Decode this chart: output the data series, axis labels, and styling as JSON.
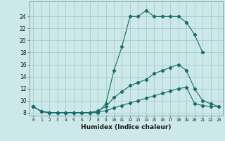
{
  "xlabel": "Humidex (Indice chaleur)",
  "bg_color": "#cce8e8",
  "grid_color": "#aacccc",
  "line_color": "#1a6b6b",
  "xlim": [
    -0.5,
    23.5
  ],
  "ylim": [
    7.5,
    26.5
  ],
  "yticks": [
    8,
    10,
    12,
    14,
    16,
    18,
    20,
    22,
    24
  ],
  "xticks": [
    0,
    1,
    2,
    3,
    4,
    5,
    6,
    7,
    8,
    9,
    10,
    11,
    12,
    13,
    14,
    15,
    16,
    17,
    18,
    19,
    20,
    21,
    22,
    23
  ],
  "series": [
    {
      "x": [
        0,
        1,
        2,
        3,
        4,
        5,
        6,
        7,
        8,
        9,
        10,
        11,
        12,
        13,
        14,
        15,
        16,
        17,
        18,
        19,
        20,
        21
      ],
      "y": [
        9.0,
        8.2,
        8.0,
        8.0,
        8.0,
        8.0,
        8.0,
        8.0,
        8.0,
        9.5,
        15.0,
        19.0,
        24.0,
        24.0,
        25.0,
        24.0,
        24.0,
        24.0,
        24.0,
        23.0,
        21.0,
        18.0
      ]
    },
    {
      "x": [
        0,
        1,
        2,
        3,
        4,
        5,
        6,
        7,
        8,
        9,
        10,
        11,
        12,
        13,
        14,
        15,
        16,
        17,
        18,
        19,
        20,
        21,
        22,
        23
      ],
      "y": [
        9.0,
        8.2,
        8.0,
        8.0,
        8.0,
        8.0,
        8.0,
        8.0,
        8.3,
        9.0,
        10.5,
        11.5,
        12.5,
        13.0,
        13.5,
        14.5,
        15.0,
        15.5,
        16.0,
        15.0,
        12.0,
        10.0,
        9.5,
        9.0
      ]
    },
    {
      "x": [
        0,
        1,
        2,
        3,
        4,
        5,
        6,
        7,
        8,
        9,
        10,
        11,
        12,
        13,
        14,
        15,
        16,
        17,
        18,
        19,
        20,
        21,
        22,
        23
      ],
      "y": [
        9.0,
        8.2,
        8.0,
        8.0,
        8.0,
        8.0,
        8.0,
        8.0,
        8.1,
        8.3,
        8.8,
        9.2,
        9.6,
        10.0,
        10.4,
        10.8,
        11.2,
        11.6,
        12.0,
        12.2,
        9.5,
        9.2,
        9.0,
        9.0
      ]
    }
  ]
}
